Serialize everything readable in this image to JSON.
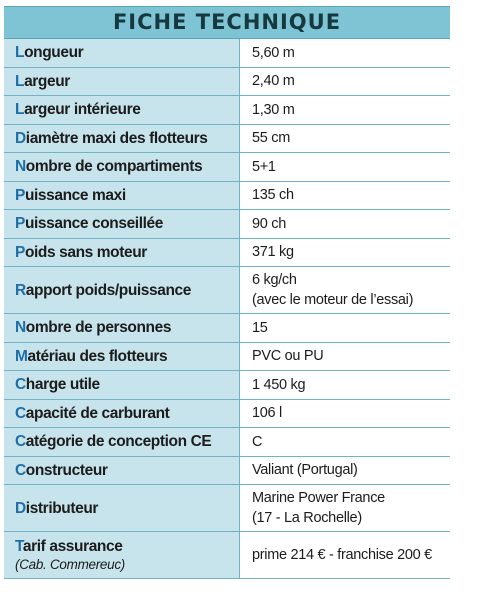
{
  "title": "FICHE TECHNIQUE",
  "rows": [
    {
      "initial": "L",
      "rest": "ongueur",
      "value": [
        "5,60 m"
      ]
    },
    {
      "initial": "L",
      "rest": "argeur",
      "value": [
        "2,40 m"
      ]
    },
    {
      "initial": "L",
      "rest": "argeur intérieure",
      "value": [
        "1,30 m"
      ]
    },
    {
      "initial": "D",
      "rest": "iamètre maxi des flotteurs",
      "value": [
        "55 cm"
      ]
    },
    {
      "initial": "N",
      "rest": "ombre de compartiments",
      "value": [
        "5+1"
      ]
    },
    {
      "initial": "P",
      "rest": "uissance maxi",
      "value": [
        "135 ch"
      ]
    },
    {
      "initial": "P",
      "rest": "uissance conseillée",
      "value": [
        "90 ch"
      ]
    },
    {
      "initial": "P",
      "rest": "oids sans moteur",
      "value": [
        "371 kg"
      ]
    },
    {
      "initial": "R",
      "rest": "apport poids/puissance",
      "value": [
        "6 kg/ch",
        "(avec le moteur de l’essai)"
      ]
    },
    {
      "initial": "N",
      "rest": "ombre de personnes",
      "value": [
        "15"
      ]
    },
    {
      "initial": "M",
      "rest": "atériau des flotteurs",
      "value": [
        "PVC ou PU"
      ]
    },
    {
      "initial": "C",
      "rest": "harge utile",
      "value": [
        "1 450 kg"
      ]
    },
    {
      "initial": "C",
      "rest": "apacité de carburant",
      "value": [
        "106 l"
      ]
    },
    {
      "initial": "C",
      "rest": "atégorie de conception CE",
      "value": [
        "C"
      ]
    },
    {
      "initial": "C",
      "rest": "onstructeur",
      "value": [
        "Valiant (Portugal)"
      ]
    },
    {
      "initial": "D",
      "rest": "istributeur",
      "value": [
        "Marine Power France",
        "(17 - La Rochelle)"
      ]
    },
    {
      "initial": "T",
      "rest": "arif assurance",
      "sub": "(Cab. Commereuc)",
      "value": [
        "prime 214 € - franchise 200 €"
      ]
    }
  ]
}
